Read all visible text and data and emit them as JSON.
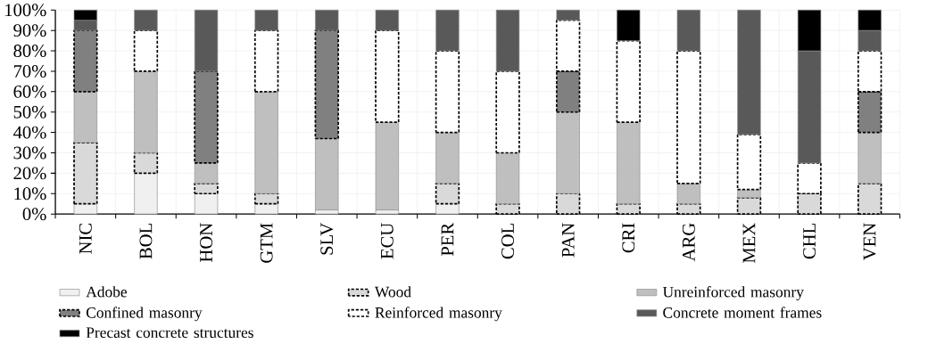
{
  "chart_data": {
    "type": "bar",
    "stacked": true,
    "grid": true,
    "legend": "bottom",
    "categories": [
      "NIC",
      "BOL",
      "HON",
      "GTM",
      "SLV",
      "ECU",
      "PER",
      "COL",
      "PAN",
      "CRI",
      "ARG",
      "MEX",
      "CHL",
      "VEN"
    ],
    "ylim": [
      0,
      100
    ],
    "yticks": [
      {
        "value": 0,
        "label": "0%"
      },
      {
        "value": 10,
        "label": "10%"
      },
      {
        "value": 20,
        "label": "20%"
      },
      {
        "value": 30,
        "label": "30%"
      },
      {
        "value": 40,
        "label": "40%"
      },
      {
        "value": 50,
        "label": "50%"
      },
      {
        "value": 60,
        "label": "60%"
      },
      {
        "value": 70,
        "label": "70%"
      },
      {
        "value": 80,
        "label": "80%"
      },
      {
        "value": 90,
        "label": "90%"
      },
      {
        "value": 100,
        "label": "100%"
      }
    ],
    "series": [
      {
        "name": "Adobe",
        "color": "#f0f0f0",
        "line_style": "solid",
        "values": [
          5,
          20,
          10,
          5,
          2,
          2,
          5,
          null,
          null,
          null,
          null,
          null,
          null,
          null
        ]
      },
      {
        "name": "Wood",
        "color": "#d9d9d9",
        "line_style": "dashed",
        "values": [
          30,
          10,
          5,
          5,
          null,
          null,
          10,
          5,
          10,
          5,
          5,
          8,
          10,
          15
        ]
      },
      {
        "name": "Unreinforced masonry",
        "color": "#bfbfbf",
        "line_style": "solid",
        "values": [
          25,
          40,
          10,
          50,
          35,
          43,
          25,
          25,
          40,
          40,
          10,
          4,
          null,
          25
        ]
      },
      {
        "name": "Confined masonry",
        "color": "#808080",
        "line_style": "dashed",
        "values": [
          30,
          null,
          45,
          null,
          53,
          null,
          null,
          null,
          20,
          null,
          null,
          null,
          null,
          20
        ]
      },
      {
        "name": "Reinforced masonry",
        "color": "#ffffff",
        "line_style": "dashed",
        "values": [
          null,
          20,
          null,
          30,
          null,
          45,
          40,
          40,
          25,
          40,
          65,
          27,
          15,
          20
        ]
      },
      {
        "name": "Concrete moment frames",
        "color": "#595959",
        "line_style": "solid",
        "values": [
          5,
          10,
          30,
          10,
          10,
          10,
          20,
          30,
          5,
          null,
          20,
          61,
          55,
          10
        ]
      },
      {
        "name": "Precast concrete structures",
        "color": "#000000",
        "line_style": "solid",
        "values": [
          5,
          null,
          null,
          null,
          null,
          null,
          null,
          null,
          null,
          15,
          null,
          null,
          20,
          10
        ]
      }
    ]
  }
}
